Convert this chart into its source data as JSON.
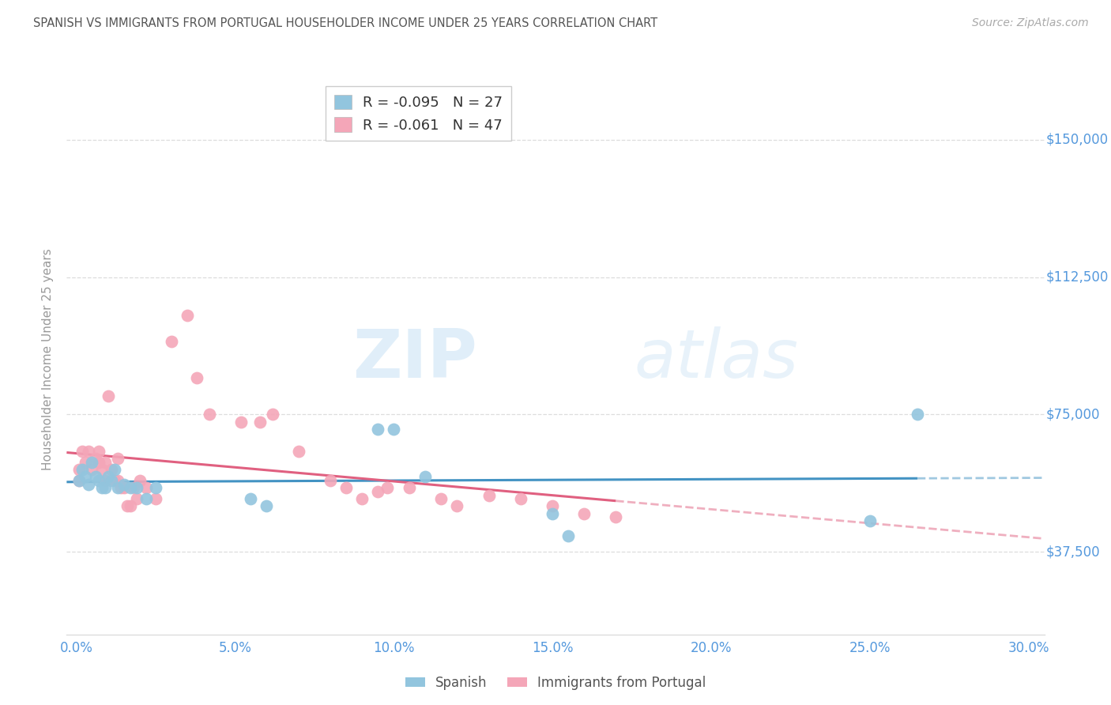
{
  "title": "SPANISH VS IMMIGRANTS FROM PORTUGAL HOUSEHOLDER INCOME UNDER 25 YEARS CORRELATION CHART",
  "source": "Source: ZipAtlas.com",
  "ylabel": "Householder Income Under 25 years",
  "xlabel_ticks": [
    "0.0%",
    "5.0%",
    "10.0%",
    "15.0%",
    "20.0%",
    "25.0%",
    "30.0%"
  ],
  "xlabel_vals": [
    0.0,
    0.05,
    0.1,
    0.15,
    0.2,
    0.25,
    0.3
  ],
  "ytick_labels": [
    "$37,500",
    "$75,000",
    "$112,500",
    "$150,000"
  ],
  "ytick_vals": [
    37500,
    75000,
    112500,
    150000
  ],
  "ylim": [
    15000,
    165000
  ],
  "xlim": [
    -0.003,
    0.305
  ],
  "watermark_zip": "ZIP",
  "watermark_atlas": "atlas",
  "legend1_label": "R = -0.095   N = 27",
  "legend2_label": "R = -0.061   N = 47",
  "blue_color": "#92c5de",
  "pink_color": "#f4a6b8",
  "blue_line_color": "#4393c3",
  "pink_line_color": "#e06080",
  "title_color": "#555555",
  "axis_label_color": "#5599dd",
  "source_color": "#aaaaaa",
  "grid_color": "#dddddd",
  "spanish_x": [
    0.001,
    0.002,
    0.003,
    0.004,
    0.005,
    0.006,
    0.007,
    0.008,
    0.009,
    0.01,
    0.011,
    0.012,
    0.013,
    0.015,
    0.017,
    0.019,
    0.022,
    0.025,
    0.055,
    0.06,
    0.095,
    0.1,
    0.11,
    0.15,
    0.155,
    0.25,
    0.265
  ],
  "spanish_y": [
    57000,
    60000,
    58000,
    56000,
    62000,
    58000,
    57000,
    55000,
    55000,
    58000,
    57000,
    60000,
    55000,
    56000,
    55000,
    55000,
    52000,
    55000,
    52000,
    50000,
    71000,
    71000,
    58000,
    48000,
    42000,
    46000,
    75000
  ],
  "portugal_x": [
    0.001,
    0.001,
    0.002,
    0.003,
    0.004,
    0.005,
    0.006,
    0.007,
    0.007,
    0.008,
    0.009,
    0.009,
    0.01,
    0.011,
    0.012,
    0.013,
    0.013,
    0.014,
    0.015,
    0.016,
    0.017,
    0.018,
    0.019,
    0.02,
    0.022,
    0.025,
    0.03,
    0.035,
    0.038,
    0.042,
    0.052,
    0.058,
    0.062,
    0.07,
    0.08,
    0.085,
    0.09,
    0.095,
    0.098,
    0.105,
    0.115,
    0.12,
    0.13,
    0.14,
    0.15,
    0.16,
    0.17
  ],
  "portugal_y": [
    60000,
    57000,
    65000,
    62000,
    65000,
    60000,
    63000,
    65000,
    62000,
    60000,
    62000,
    57000,
    80000,
    60000,
    57000,
    63000,
    57000,
    55000,
    55000,
    50000,
    50000,
    55000,
    52000,
    57000,
    55000,
    52000,
    95000,
    102000,
    85000,
    75000,
    73000,
    73000,
    75000,
    65000,
    57000,
    55000,
    52000,
    54000,
    55000,
    55000,
    52000,
    50000,
    53000,
    52000,
    50000,
    48000,
    47000
  ]
}
